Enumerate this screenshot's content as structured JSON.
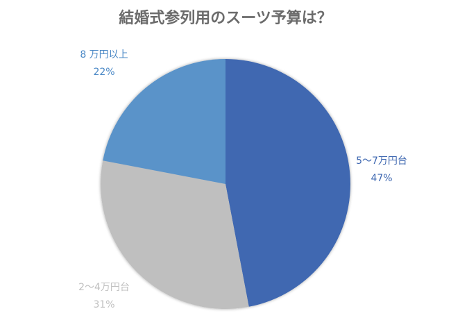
{
  "chart_data": {
    "type": "pie",
    "title": "結婚式参列用のスーツ予算は？",
    "start": "top",
    "direction": "clockwise",
    "slices": [
      {
        "label": "5～7万円台",
        "value": 47,
        "percent_label": "47%",
        "color": "#3F68B1"
      },
      {
        "label": "2～4万円台",
        "value": 31,
        "percent_label": "31%",
        "color": "#BFBFBF"
      },
      {
        "label": "8 万円以上",
        "value": 22,
        "percent_label": "22%",
        "color": "#5A93C9"
      }
    ],
    "label_colors": [
      "#3F68B1",
      "#BFBFBF",
      "#4A88C6"
    ]
  }
}
